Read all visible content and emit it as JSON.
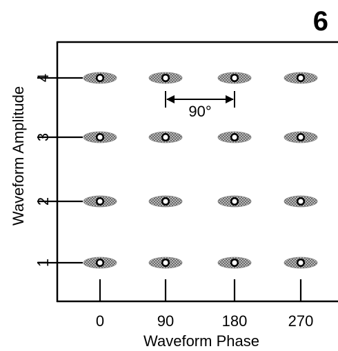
{
  "panel_label": "6",
  "chart_data": {
    "type": "scatter",
    "title": "",
    "xlabel": "Waveform Phase",
    "ylabel": "Waveform Amplitude",
    "x_ticks": [
      "0",
      "90",
      "180",
      "270"
    ],
    "y_ticks": [
      "1",
      "2",
      "3",
      "4"
    ],
    "points": [
      {
        "phase": 0,
        "amplitude": 1
      },
      {
        "phase": 90,
        "amplitude": 1
      },
      {
        "phase": 180,
        "amplitude": 1
      },
      {
        "phase": 270,
        "amplitude": 1
      },
      {
        "phase": 0,
        "amplitude": 2
      },
      {
        "phase": 90,
        "amplitude": 2
      },
      {
        "phase": 180,
        "amplitude": 2
      },
      {
        "phase": 270,
        "amplitude": 2
      },
      {
        "phase": 0,
        "amplitude": 3
      },
      {
        "phase": 90,
        "amplitude": 3
      },
      {
        "phase": 180,
        "amplitude": 3
      },
      {
        "phase": 270,
        "amplitude": 3
      },
      {
        "phase": 0,
        "amplitude": 4
      },
      {
        "phase": 90,
        "amplitude": 4
      },
      {
        "phase": 180,
        "amplitude": 4
      },
      {
        "phase": 270,
        "amplitude": 4
      }
    ],
    "annotation": {
      "label": "90°",
      "from_phase": 90,
      "to_phase": 180,
      "amplitude": 4
    },
    "colors": {
      "marker_fill": "#ffffff",
      "marker_stroke": "#000000",
      "ellipse_hatch": "#8a8a8a",
      "axis": "#000000"
    }
  }
}
